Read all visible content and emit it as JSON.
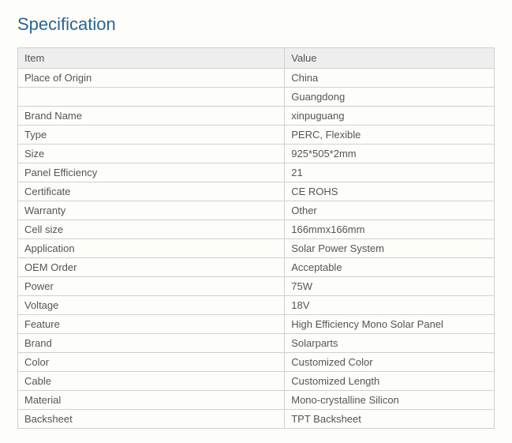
{
  "title": {
    "text": "Specification",
    "color": "#2a6496",
    "fontsize": 22
  },
  "table": {
    "header_bg": "#eeeeee",
    "header_text_color": "#555555",
    "row_text_color": "#555555",
    "border_color": "#d0d0d0",
    "background_color": "#fdfdf9",
    "fontsize": 13,
    "columns": [
      "Item",
      "Value"
    ],
    "rows": [
      [
        "Place of Origin",
        "China"
      ],
      [
        "",
        "Guangdong"
      ],
      [
        "Brand Name",
        "xinpuguang"
      ],
      [
        "Type",
        "PERC, Flexible"
      ],
      [
        "Size",
        "925*505*2mm"
      ],
      [
        "Panel Efficiency",
        "21"
      ],
      [
        "Certificate",
        "CE ROHS"
      ],
      [
        "Warranty",
        "Other"
      ],
      [
        "Cell size",
        "166mmx166mm"
      ],
      [
        "Application",
        "Solar Power System"
      ],
      [
        "OEM Order",
        "Acceptable"
      ],
      [
        "Power",
        "75W"
      ],
      [
        "Voltage",
        "18V"
      ],
      [
        "Feature",
        "High Efficiency Mono Solar Panel"
      ],
      [
        "Brand",
        "Solarparts"
      ],
      [
        "Color",
        "Customized Color"
      ],
      [
        "Cable",
        "Customized Length"
      ],
      [
        "Material",
        "Mono-crystalline Silicon"
      ],
      [
        "Backsheet",
        "TPT Backsheet"
      ]
    ]
  }
}
